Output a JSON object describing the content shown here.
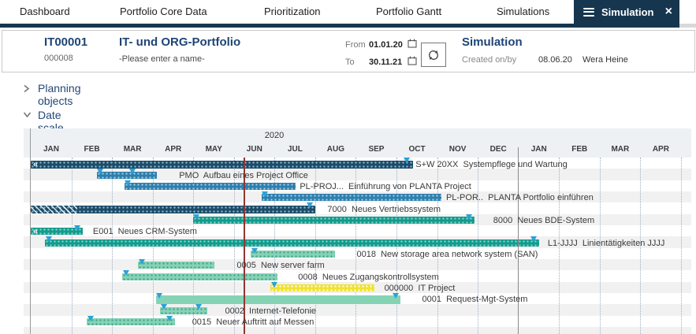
{
  "nav": {
    "items": [
      "Dashboard",
      "Portfolio Core Data",
      "Prioritization",
      "Portfolio Gantt",
      "Simulations"
    ],
    "active_tab": "Simulation"
  },
  "header": {
    "id": "IT00001",
    "code": "000008",
    "title": "IT- und ORG-Portfolio",
    "name_placeholder": "-Please enter a name-",
    "from_label": "From",
    "from_value": "01.01.20",
    "to_label": "To",
    "to_value": "30.11.21",
    "sim_title": "Simulation",
    "created_label": "Created on/by",
    "created_date": "08.06.20",
    "created_by": "Wera Heine"
  },
  "sections": {
    "planning_objects": "Planning objects",
    "date_scale": "Date scale"
  },
  "gantt": {
    "year_label": "2020",
    "months": [
      "JAN",
      "FEB",
      "MAR",
      "APR",
      "MAY",
      "JUN",
      "JUL",
      "AUG",
      "SEP",
      "OCT",
      "NOV",
      "DEC",
      "JAN",
      "FEB",
      "MAR",
      "APR"
    ],
    "rows": [
      {
        "label": "S+W 20XX  Systempflege und Wartung",
        "color": "navy",
        "start": 0,
        "end": 9.4,
        "label_at": 9.47,
        "markers": [
          9.27
        ],
        "arrows": true,
        "h": 10
      },
      {
        "label": "PMO  Aufbau eines Project Office",
        "color": "blue",
        "start": 1.63,
        "end": 3.1,
        "label_at": 3.65,
        "markers": [
          1.72,
          2.52
        ]
      },
      {
        "label": "PL-PROJ...  Einführung von PLANTA Project",
        "color": "blue",
        "start": 2.31,
        "end": 6.52,
        "label_at": 6.62,
        "markers": [
          2.4
        ]
      },
      {
        "label": "PL-POR..  PLANTA Portfolio einführen",
        "color": "blue",
        "start": 5.68,
        "end": 10.1,
        "label_at": 10.22,
        "markers": [
          5.77
        ]
      },
      {
        "label": "7000  Neues Vertriebssystem",
        "color": "navy",
        "start": 0,
        "end": 7.0,
        "label_at": 7.3,
        "markers": [
          6.88
        ],
        "hatch": 1.15,
        "h": 10
      },
      {
        "label": "8000  Neues BDE-System",
        "color": "teal",
        "start": 4.0,
        "end": 10.92,
        "label_at": 11.38,
        "markers": [
          4.09,
          10.8
        ]
      },
      {
        "label": "E001  Neues CRM-System",
        "color": "teal",
        "start": 0,
        "end": 1.28,
        "label_at": 1.53,
        "markers": [
          1.15
        ],
        "arrows": true
      },
      {
        "label": "L1-JJJJ  Linientätigkeiten JJJJ",
        "color": "teal",
        "start": 0.35,
        "end": 12.51,
        "label_at": 12.72,
        "markers": [
          0.45,
          12.39
        ]
      },
      {
        "label": "0018  New storage area network system (SAN)",
        "color": "mint",
        "start": 5.41,
        "end": 7.49,
        "label_at": 8.02,
        "markers": [
          5.51
        ]
      },
      {
        "label": "0005  New server farm",
        "color": "mint",
        "start": 2.64,
        "end": 4.52,
        "label_at": 5.07,
        "markers": [
          2.74
        ]
      },
      {
        "label": "0008  Neues Zugangskontrollsystem",
        "color": "mint",
        "start": 2.25,
        "end": 6.07,
        "label_at": 6.58,
        "markers": [
          2.35
        ]
      },
      {
        "label": "000000  IT Project",
        "color": "yellow",
        "start": 5.9,
        "end": 8.46,
        "label_at": 8.7,
        "markers": [
          6.0
        ]
      },
      {
        "label": "0001  Request-Mgt-System",
        "color": "mint",
        "start": 3.08,
        "end": 9.1,
        "label_at": 9.63,
        "markers": [
          3.18,
          8.98
        ],
        "pattern": "plain",
        "h": 11
      },
      {
        "label": "0002  Internet-Telefonie",
        "color": "mint",
        "start": 3.18,
        "end": 4.34,
        "label_at": 4.78,
        "markers": [
          3.28,
          4.15
        ]
      },
      {
        "label": "0015  Neuer Auftritt auf Messen",
        "color": "mint",
        "start": 1.38,
        "end": 3.55,
        "label_at": 3.97,
        "markers": [
          1.48,
          3.43
        ]
      }
    ]
  },
  "colors": {
    "accent_navy": "#16364f",
    "bar_navy": "#1d4b68",
    "bar_blue": "#2d7fae",
    "bar_teal": "#129c8d",
    "bar_mint": "#85d3b5",
    "bar_yellow": "#f1e232",
    "marker_blue": "#2aa2da",
    "current_date_line": "#8d3732"
  }
}
